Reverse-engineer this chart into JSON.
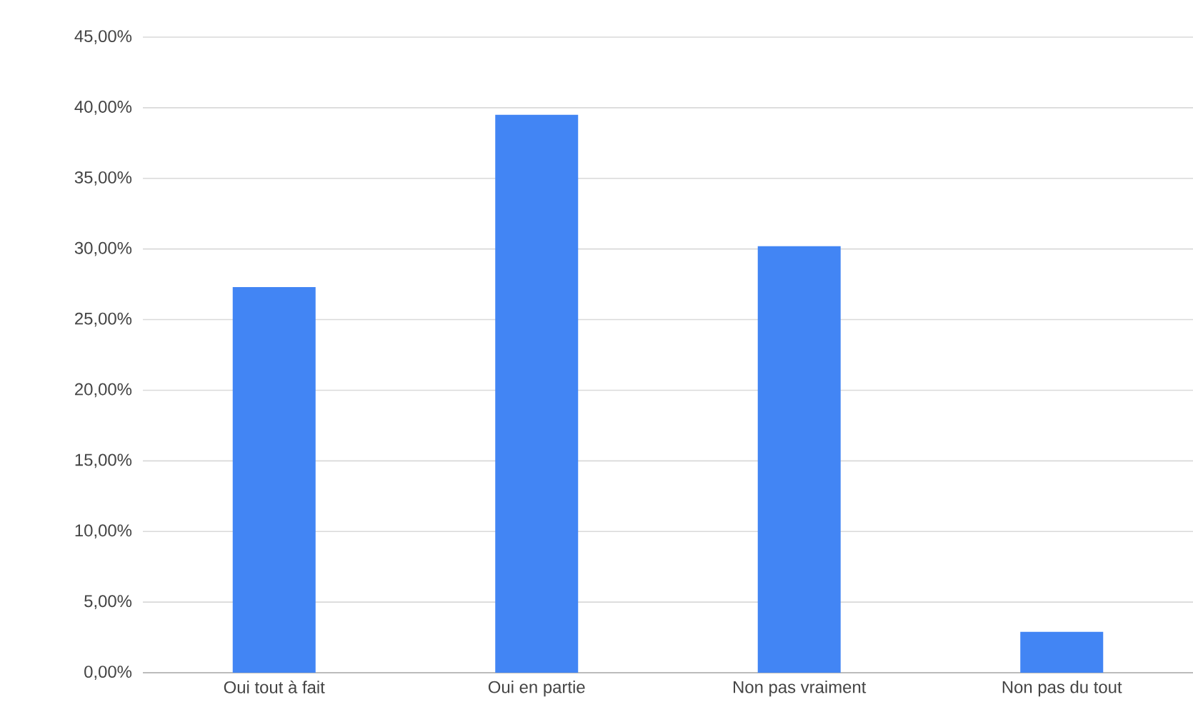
{
  "chart_data": {
    "type": "bar",
    "categories": [
      "Oui tout à fait",
      "Oui en partie",
      "Non pas vraiment",
      "Non pas du tout"
    ],
    "values": [
      27.3,
      39.5,
      30.2,
      2.9
    ],
    "color": "#4285f4",
    "ylim": [
      0,
      45
    ],
    "yticks": [
      {
        "value": 0,
        "label": "0,00%"
      },
      {
        "value": 5,
        "label": "5,00%"
      },
      {
        "value": 10,
        "label": "10,00%"
      },
      {
        "value": 15,
        "label": "15,00%"
      },
      {
        "value": 20,
        "label": "20,00%"
      },
      {
        "value": 25,
        "label": "25,00%"
      },
      {
        "value": 30,
        "label": "30,00%"
      },
      {
        "value": 35,
        "label": "35,00%"
      },
      {
        "value": 40,
        "label": "40,00%"
      },
      {
        "value": 45,
        "label": "45,00%"
      }
    ],
    "grid": "y"
  }
}
